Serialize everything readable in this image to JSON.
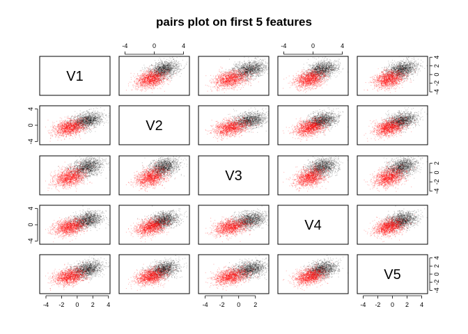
{
  "chart_data": {
    "type": "scatter",
    "subtype": "pairs",
    "title": "pairs plot on first 5 features",
    "variables": [
      "V1",
      "V2",
      "V3",
      "V4",
      "V5"
    ],
    "axis_ticks": {
      "V1": [
        -4,
        -2,
        0,
        2,
        4
      ],
      "V2": [
        -4,
        0,
        4
      ],
      "V3": [
        -4,
        -2,
        0,
        2
      ],
      "V4": [
        -4,
        0,
        4
      ],
      "V5": [
        -4,
        -2,
        0,
        2,
        4
      ]
    },
    "tick_labels": {
      "V1": [
        "-4",
        "-2",
        "0",
        "2",
        "4"
      ],
      "V2": [
        "-4",
        "0",
        "4"
      ],
      "V3": [
        "-4",
        "-2",
        "0",
        "2"
      ],
      "V4": [
        "-4",
        "0",
        "4"
      ],
      "V5": [
        "-4",
        "-2",
        "0",
        "2",
        "4"
      ]
    },
    "ranges": {
      "V1": [
        -4.8,
        4.2
      ],
      "V2": [
        -4.8,
        4.8
      ],
      "V3": [
        -4.8,
        3.6
      ],
      "V4": [
        -4.8,
        4.8
      ],
      "V5": [
        -4.8,
        4.8
      ]
    },
    "series": [
      {
        "color": "#000000",
        "center": [
          1.2,
          1.2,
          1.2,
          1.2,
          1.2
        ],
        "sd": 1.0
      },
      {
        "color": "#ff0000",
        "center": [
          -1.0,
          -0.5,
          -1.0,
          -0.5,
          -0.5
        ],
        "sd": 1.0
      }
    ],
    "correlation": 0.3,
    "grid": false,
    "legend": "none"
  }
}
